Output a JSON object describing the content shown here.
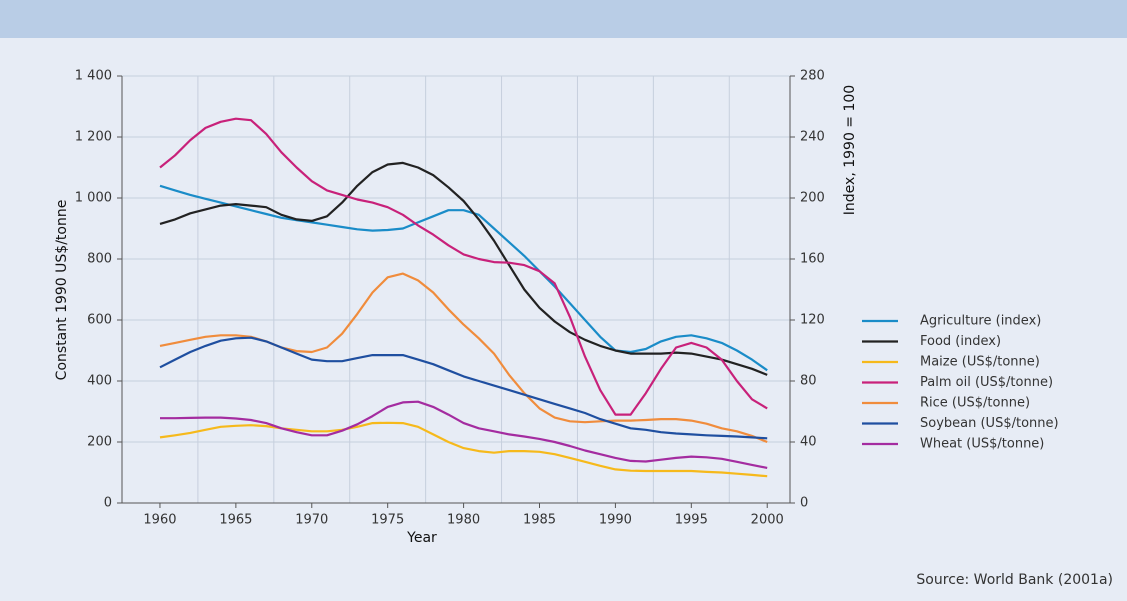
{
  "chart_data": {
    "type": "line",
    "x": [
      1960,
      1961,
      1962,
      1963,
      1964,
      1965,
      1966,
      1967,
      1968,
      1969,
      1970,
      1971,
      1972,
      1973,
      1974,
      1975,
      1976,
      1977,
      1978,
      1979,
      1980,
      1981,
      1982,
      1983,
      1984,
      1985,
      1986,
      1987,
      1988,
      1989,
      1990,
      1991,
      1992,
      1993,
      1994,
      1995,
      1996,
      1997,
      1998,
      1999,
      2000
    ],
    "xlim": [
      1957.5,
      2001.5
    ],
    "xticks": [
      1960,
      1965,
      1970,
      1975,
      1980,
      1985,
      1990,
      1995,
      2000
    ],
    "xgrid": [
      1962.5,
      1967.5,
      1972.5,
      1977.5,
      1982.5,
      1987.5,
      1992.5,
      1997.5
    ],
    "ylim": [
      0,
      1400
    ],
    "yticks": [
      0,
      200,
      400,
      600,
      800,
      {
        "value": 1000,
        "label": "1 000"
      },
      {
        "value": 1200,
        "label": "1 200"
      },
      {
        "value": 1400,
        "label": "1 400"
      }
    ],
    "y2lim": [
      0,
      280
    ],
    "y2ticks": [
      0,
      40,
      80,
      120,
      160,
      200,
      240,
      280
    ],
    "xlabel": "Year",
    "ylabel": "Constant 1990 US$/tonne",
    "y2label": "Index, 1990 = 100",
    "source": "Source: World Bank (2001a)",
    "grid": true,
    "legend": "right",
    "series": [
      {
        "name": "Agriculture (index)",
        "color": "#1a8cc8",
        "axis": "y2",
        "values": [
          208,
          205,
          202,
          199.5,
          197,
          194.5,
          192,
          189.5,
          187,
          185.5,
          184,
          182.5,
          181,
          179.5,
          178.6,
          179,
          180,
          184,
          188,
          192,
          192,
          189,
          180,
          171,
          162,
          152,
          142,
          131,
          120,
          109,
          100,
          99,
          101,
          106,
          109,
          110,
          108,
          105,
          100,
          94,
          87
        ]
      },
      {
        "name": "Food (index)",
        "color": "#222222",
        "axis": "y2",
        "values": [
          183,
          186,
          190,
          192.5,
          195,
          196,
          195,
          194,
          189,
          186,
          185,
          188,
          197,
          208,
          217,
          222,
          223,
          220,
          215,
          207,
          198,
          186,
          172,
          156,
          140,
          128,
          119,
          112,
          107,
          103,
          100,
          98,
          98,
          98,
          98.6,
          98,
          96,
          94,
          91,
          88,
          84
        ]
      },
      {
        "name": "Maize (US$/tonne)",
        "color": "#f6b91b",
        "values": [
          215,
          222,
          230,
          240,
          250,
          253,
          255,
          252,
          245,
          240,
          235,
          235,
          240,
          250,
          262,
          263,
          262,
          250,
          225,
          200,
          180,
          170,
          165,
          170,
          170,
          168,
          160,
          148,
          135,
          122,
          110,
          106,
          105,
          105,
          105,
          105,
          102,
          100,
          96,
          92,
          88
        ]
      },
      {
        "name": "Palm oil (US$/tonne)",
        "color": "#c8217a",
        "values": [
          1100,
          1140,
          1190,
          1230,
          1250,
          1260,
          1255,
          1210,
          1150,
          1100,
          1055,
          1025,
          1010,
          995,
          985,
          970,
          945,
          910,
          880,
          845,
          815,
          800,
          790,
          788,
          780,
          760,
          720,
          610,
          480,
          370,
          290,
          290,
          360,
          440,
          510,
          525,
          510,
          470,
          400,
          340,
          310
        ]
      },
      {
        "name": "Rice (US$/tonne)",
        "color": "#f08c3c",
        "values": [
          515,
          525,
          535,
          545,
          550,
          550,
          545,
          530,
          510,
          498,
          495,
          510,
          555,
          620,
          690,
          740,
          752,
          730,
          690,
          635,
          585,
          540,
          490,
          420,
          360,
          310,
          280,
          268,
          265,
          268,
          270,
          270,
          272,
          275,
          275,
          270,
          260,
          245,
          235,
          220,
          200
        ]
      },
      {
        "name": "Soybean (US$/tonne)",
        "color": "#1f4fa0",
        "values": [
          445,
          470,
          495,
          515,
          532,
          540,
          542,
          530,
          510,
          490,
          470,
          465,
          465,
          475,
          485,
          485,
          485,
          470,
          455,
          435,
          415,
          400,
          385,
          370,
          355,
          340,
          325,
          310,
          295,
          275,
          260,
          245,
          240,
          232,
          228,
          225,
          222,
          220,
          218,
          215,
          212
        ]
      },
      {
        "name": "Wheat (US$/tonne)",
        "color": "#a42ca0",
        "values": [
          278,
          278,
          279,
          280,
          280,
          277,
          272,
          262,
          245,
          232,
          222,
          222,
          237,
          258,
          285,
          315,
          330,
          332,
          315,
          290,
          262,
          245,
          235,
          225,
          218,
          210,
          200,
          187,
          172,
          160,
          148,
          138,
          136,
          142,
          148,
          152,
          150,
          145,
          135,
          125,
          115
        ]
      }
    ]
  }
}
